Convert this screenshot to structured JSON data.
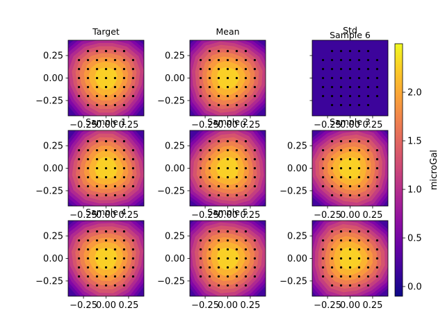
{
  "figure": {
    "colormap": "plasma",
    "colorbar": {
      "label": "microGal",
      "ticks": [
        "0.0",
        "0.5",
        "1.0",
        "1.5",
        "2.0"
      ],
      "tick_values": [
        0.0,
        0.5,
        1.0,
        1.5,
        2.0
      ],
      "range": [
        -0.1,
        2.5
      ]
    }
  },
  "chart_data": [
    {
      "type": "heatmap",
      "title": "Target",
      "peak": 2.4,
      "edge": 0.15,
      "xlim": [
        -0.42,
        0.42
      ],
      "ylim": [
        -0.42,
        0.42
      ],
      "xticks": [
        "−0.25",
        "0.00",
        "0.25"
      ],
      "yticks": [
        "0.25",
        "0.00",
        "−0.25"
      ],
      "points": "7x7 grid (corners omitted), spacing 0.1"
    },
    {
      "type": "heatmap",
      "title": "Mean",
      "peak": 2.4,
      "edge": 0.15,
      "xlim": [
        -0.42,
        0.42
      ],
      "ylim": [
        -0.42,
        0.42
      ],
      "xticks": [
        "−0.25",
        "0.00",
        "0.25"
      ],
      "yticks": [
        "0.25",
        "0.00",
        "−0.25"
      ]
    },
    {
      "type": "heatmap",
      "title": "Std",
      "subtitle": "Sample 6",
      "uniform": 0.0,
      "xlim": [
        -0.42,
        0.42
      ],
      "ylim": [
        -0.42,
        0.42
      ],
      "xticks": [
        "−0.25",
        "0.00",
        "0.25"
      ],
      "yticks": []
    },
    {
      "type": "heatmap",
      "title": "Sample 1",
      "peak": 2.4,
      "edge": 0.15,
      "xlim": [
        -0.42,
        0.42
      ],
      "ylim": [
        -0.42,
        0.42
      ],
      "xticks": [
        "−0.25",
        "0.00",
        "0.25"
      ],
      "yticks": [
        "0.25",
        "0.00",
        "−0.25"
      ]
    },
    {
      "type": "heatmap",
      "title": "Sample 2",
      "peak": 2.4,
      "edge": 0.15,
      "xlim": [
        -0.42,
        0.42
      ],
      "ylim": [
        -0.42,
        0.42
      ],
      "xticks": [
        "−0.25",
        "0.00",
        "0.25"
      ],
      "yticks": [
        "0.25",
        "0.00",
        "−0.25"
      ]
    },
    {
      "type": "heatmap",
      "title": "Sample 3",
      "peak": 2.4,
      "edge": 0.15,
      "xlim": [
        -0.42,
        0.42
      ],
      "ylim": [
        -0.42,
        0.42
      ],
      "xticks": [
        "−0.25",
        "0.00",
        "0.25"
      ],
      "yticks": [
        "0.25",
        "0.00",
        "−0.25"
      ]
    },
    {
      "type": "heatmap",
      "title": "Sample 4",
      "peak": 2.4,
      "edge": 0.15,
      "xlim": [
        -0.42,
        0.42
      ],
      "ylim": [
        -0.42,
        0.42
      ],
      "xticks": [
        "−0.25",
        "0.00",
        "0.25"
      ],
      "yticks": [
        "0.25",
        "0.00",
        "−0.25"
      ]
    },
    {
      "type": "heatmap",
      "title": "Sample 5",
      "peak": 2.4,
      "edge": 0.15,
      "xlim": [
        -0.42,
        0.42
      ],
      "ylim": [
        -0.42,
        0.42
      ],
      "xticks": [
        "−0.25",
        "0.00",
        "0.25"
      ],
      "yticks": [
        "0.25",
        "0.00",
        "−0.25"
      ]
    },
    {
      "type": "heatmap",
      "title": "",
      "peak": 2.4,
      "edge": 0.15,
      "xlim": [
        -0.42,
        0.42
      ],
      "ylim": [
        -0.42,
        0.42
      ],
      "xticks": [
        "−0.25",
        "0.00",
        "0.25"
      ],
      "yticks": [
        "0.25",
        "0.00",
        "−0.25"
      ]
    }
  ]
}
